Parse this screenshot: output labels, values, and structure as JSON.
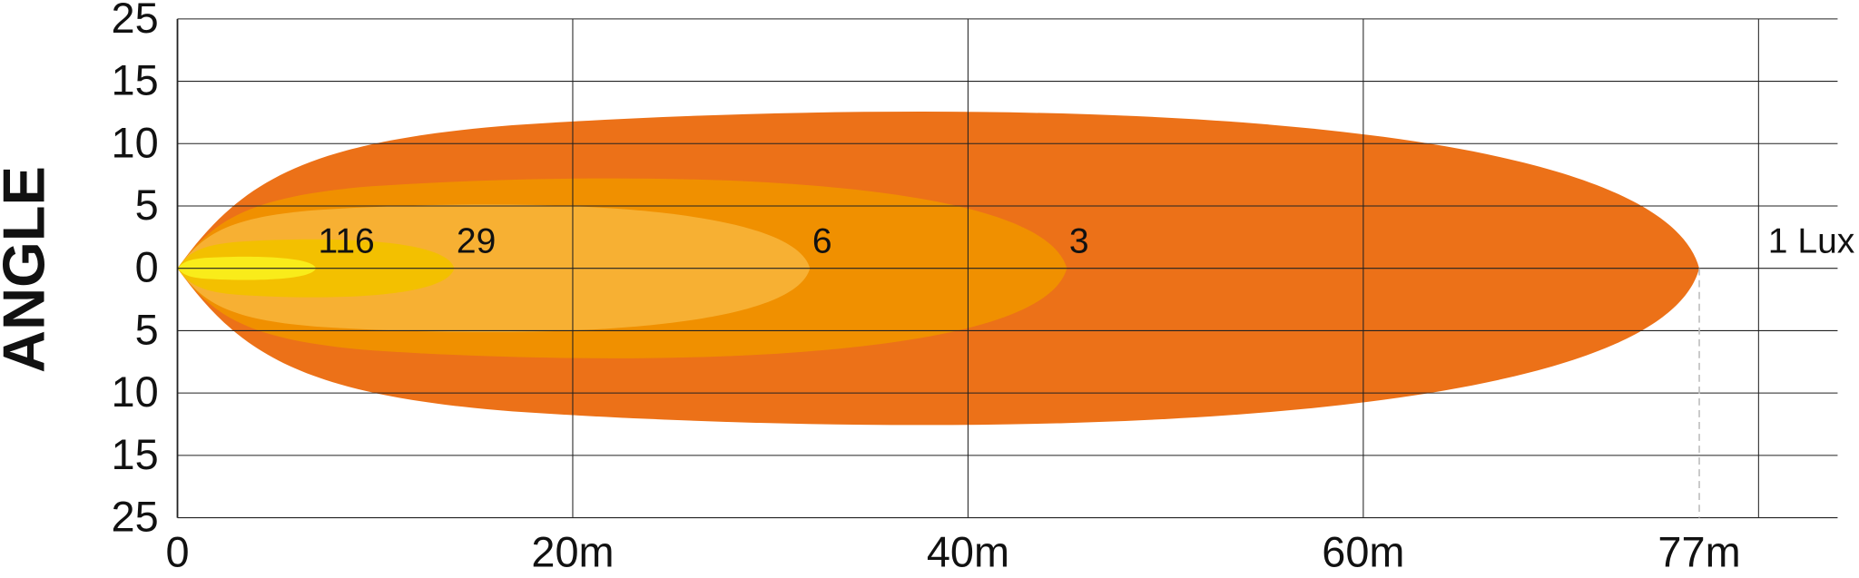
{
  "chart_data": {
    "type": "beam",
    "y_label": "ANGLE",
    "y_categories": [
      "25",
      "15",
      "10",
      "5",
      "0",
      "5",
      "10",
      "15",
      "25"
    ],
    "xlim": [
      0,
      84
    ],
    "xgrid": [
      0,
      20,
      40,
      60,
      80
    ],
    "xticks": [
      0,
      {
        "value": 20,
        "label": "20m"
      },
      {
        "value": 40,
        "label": "40m"
      },
      {
        "value": 60,
        "label": "60m"
      },
      {
        "value": 77,
        "label": "77m"
      }
    ],
    "series": [
      {
        "name": "1 Lux",
        "color": "#ec7118",
        "values": [
          77
        ]
      },
      {
        "name": "3",
        "color": "#f09000",
        "values": [
          45
        ]
      },
      {
        "name": "6",
        "color": "#f7b033",
        "values": [
          32
        ]
      },
      {
        "name": "29",
        "color": "#f3c000",
        "values": [
          14
        ]
      },
      {
        "name": "116",
        "color": "#f9ec1a",
        "values": [
          7
        ]
      }
    ]
  }
}
